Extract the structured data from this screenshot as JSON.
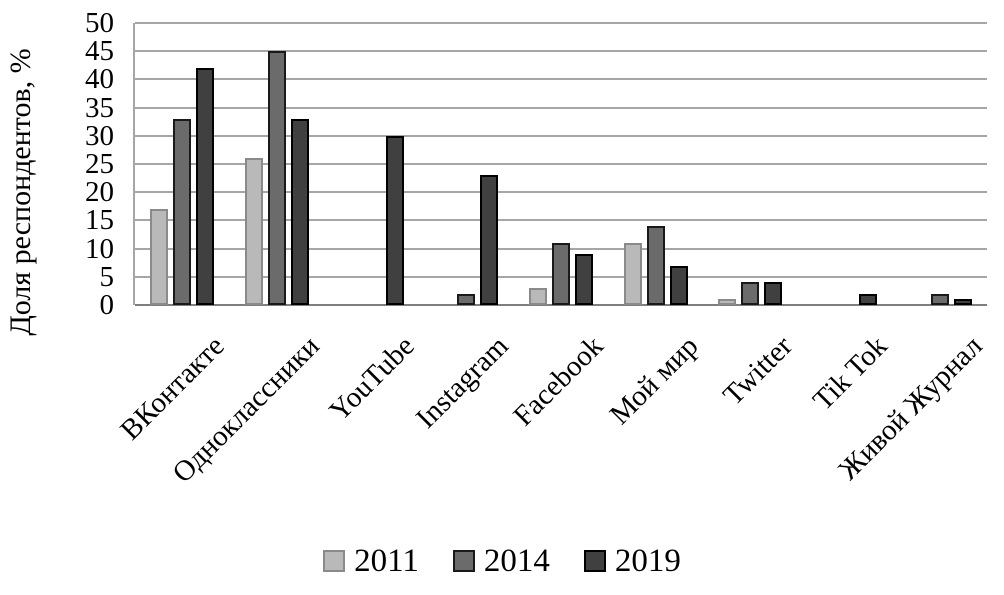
{
  "chart_data": {
    "type": "bar",
    "title": "",
    "xlabel": "",
    "ylabel": "Доля респондентов, %",
    "ylim": [
      0,
      50
    ],
    "ytick_step": 5,
    "yticks": [
      0,
      5,
      10,
      15,
      20,
      25,
      30,
      35,
      40,
      45,
      50
    ],
    "grid": true,
    "legend_position": "bottom",
    "categories": [
      "ВКонтакте",
      "Одноклассники",
      "YouTube",
      "Instagram",
      "Facebook",
      "Мой мир",
      "Twitter",
      "Tik Tok",
      "Живой Журнал"
    ],
    "series": [
      {
        "name": "2011",
        "fill": "#b9b9b9",
        "border": "#8a8a8a",
        "values": [
          17,
          26,
          0,
          0,
          3,
          11,
          1,
          0,
          0
        ]
      },
      {
        "name": "2014",
        "fill": "#6b6b6b",
        "border": "#1a1a1a",
        "values": [
          33,
          45,
          0,
          2,
          11,
          14,
          4,
          0,
          2
        ]
      },
      {
        "name": "2019",
        "fill": "#404040",
        "border": "#000000",
        "values": [
          42,
          33,
          30,
          23,
          9,
          7,
          4,
          2,
          1
        ]
      }
    ],
    "colors": {
      "gridline": "#a6a6a6",
      "axis": "#7f7f7f",
      "text": "#000000",
      "background": "#ffffff"
    }
  }
}
